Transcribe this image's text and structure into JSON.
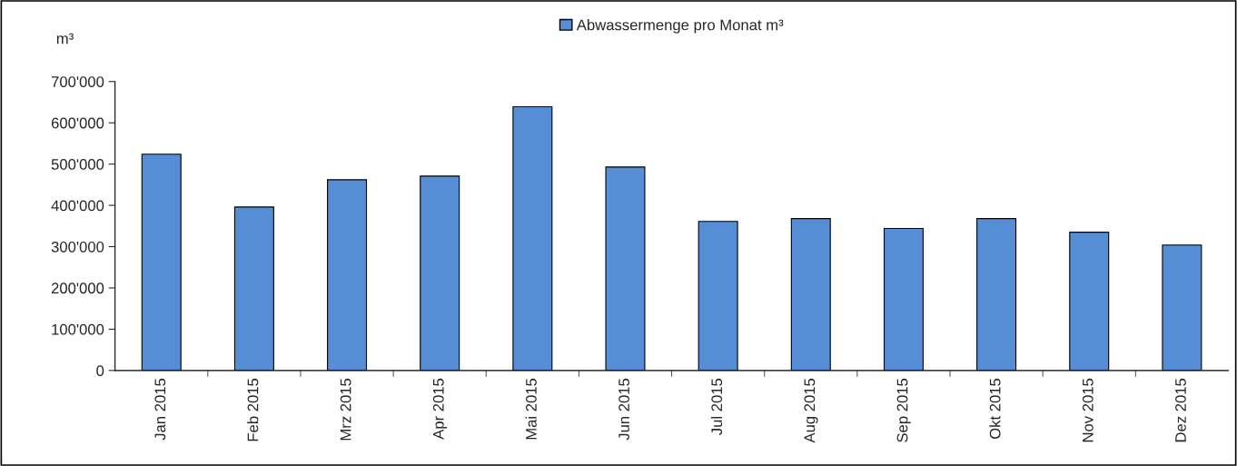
{
  "chart_data": {
    "type": "bar",
    "categories": [
      "Jan 2015",
      "Feb 2015",
      "Mrz 2015",
      "Apr 2015",
      "Mai 2015",
      "Jun 2015",
      "Jul 2015",
      "Aug 2015",
      "Sep 2015",
      "Okt 2015",
      "Nov 2015",
      "Dez 2015"
    ],
    "series": [
      {
        "name": "Abwassermenge pro Monat m³",
        "color": "#558ed5",
        "values": [
          524000,
          396000,
          462000,
          471000,
          639000,
          493000,
          361000,
          368000,
          344000,
          368000,
          335000,
          304000
        ]
      }
    ],
    "ylabel": "m³",
    "ylim": [
      0,
      700000
    ],
    "yticks": [
      {
        "value": 0,
        "label": "0"
      },
      {
        "value": 100000,
        "label": "100'000"
      },
      {
        "value": 200000,
        "label": "200'000"
      },
      {
        "value": 300000,
        "label": "300'000"
      },
      {
        "value": 400000,
        "label": "400'000"
      },
      {
        "value": 500000,
        "label": "500'000"
      },
      {
        "value": 600000,
        "label": "600'000"
      },
      {
        "value": 700000,
        "label": "700'000"
      }
    ],
    "legend": "top",
    "grid": false
  }
}
